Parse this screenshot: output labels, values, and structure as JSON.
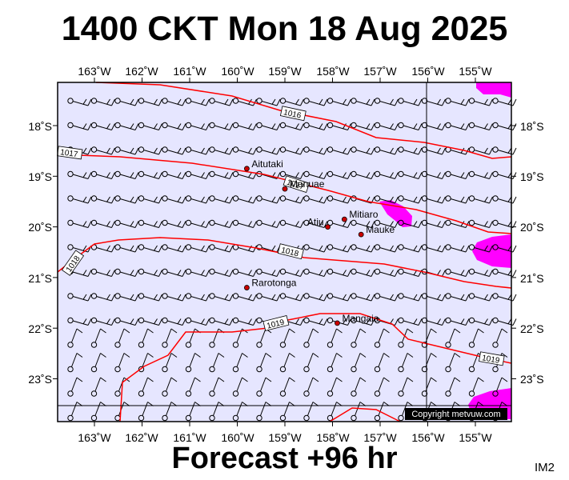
{
  "header": {
    "title": "1400 CKT Mon 18 Aug 2025"
  },
  "footer": {
    "forecast": "Forecast +96 hr",
    "code": "IM2"
  },
  "map": {
    "lon_labels": [
      "163˚W",
      "162˚W",
      "161˚W",
      "160˚W",
      "159˚W",
      "158˚W",
      "157˚W",
      "156˚W",
      "155˚W"
    ],
    "lat_labels": [
      "18˚S",
      "19˚S",
      "20˚S",
      "21˚S",
      "22˚S",
      "23˚S"
    ],
    "places": [
      {
        "name": "Aitutaki",
        "lon": -159.8,
        "lat": -18.85
      },
      {
        "name": "Manuae",
        "lon": -159.0,
        "lat": -19.25
      },
      {
        "name": "Mitiaro",
        "lon": -157.75,
        "lat": -19.85
      },
      {
        "name": "Atiu",
        "lon": -158.1,
        "lat": -20.0
      },
      {
        "name": "Mauke",
        "lon": -157.4,
        "lat": -20.15
      },
      {
        "name": "Rarotonga",
        "lon": -159.8,
        "lat": -21.2
      },
      {
        "name": "Mangaia",
        "lon": -157.9,
        "lat": -21.9
      }
    ],
    "isobar_labels": [
      "1016",
      "1017",
      "1017",
      "1018",
      "1018",
      "1019",
      "1019"
    ],
    "copyright": "Copyright metvuw.com",
    "colors": {
      "background": "#e6e6ff",
      "isobar": "#ff0000",
      "precip": "#ff00ff",
      "place": "#cc0000"
    }
  }
}
